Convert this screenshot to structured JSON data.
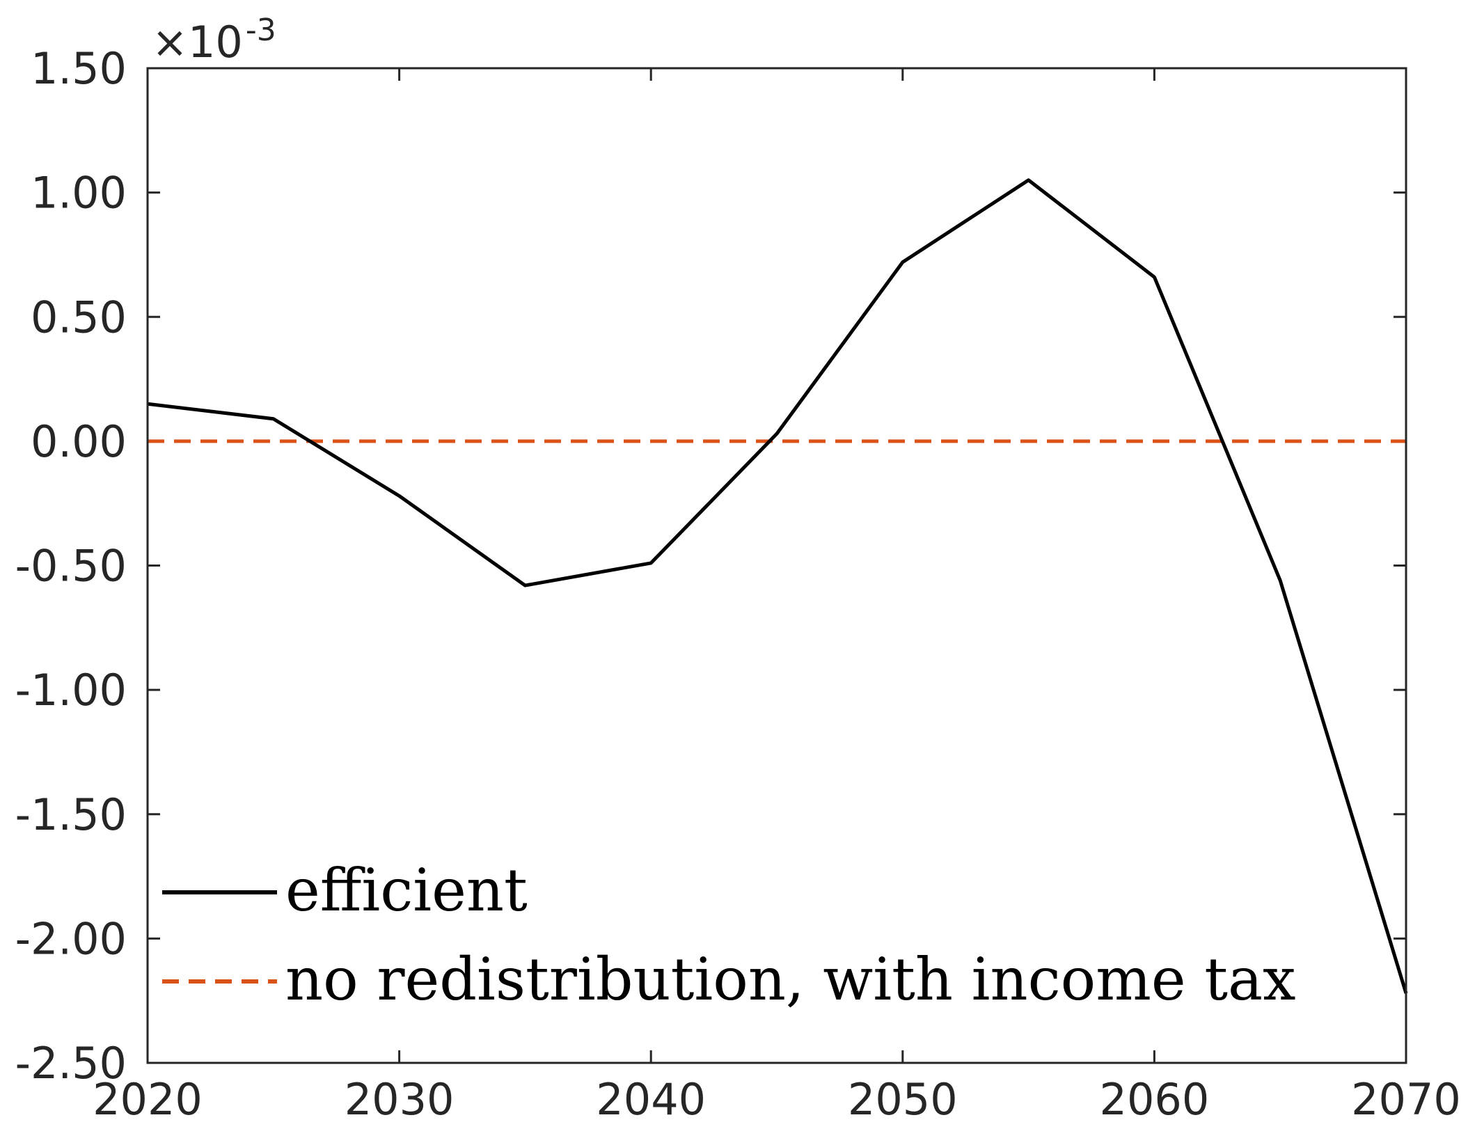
{
  "chart_data": {
    "type": "line",
    "title": "",
    "xlabel": "",
    "ylabel": "",
    "x": [
      2020,
      2025,
      2030,
      2035,
      2040,
      2045,
      2050,
      2055,
      2060,
      2065,
      2070
    ],
    "xlim": [
      2020,
      2070
    ],
    "ylim": [
      -2.5,
      1.5
    ],
    "y_exponent_label": {
      "base": "×10",
      "exponent": "-3"
    },
    "x_ticks": [
      2020,
      2030,
      2040,
      2050,
      2060,
      2070
    ],
    "x_tick_labels": [
      "2020",
      "2030",
      "2040",
      "2050",
      "2060",
      "2070"
    ],
    "y_ticks": [
      1.5,
      1.0,
      0.5,
      0.0,
      -0.5,
      -1.0,
      -1.5,
      -2.0,
      -2.5
    ],
    "y_tick_labels": [
      "1.50",
      "1.00",
      "0.50",
      "0.00",
      "-0.50",
      "-1.00",
      "-1.50",
      "-2.00",
      "-2.50"
    ],
    "grid": false,
    "legend_position": "bottom-left",
    "series": [
      {
        "name": "efficient",
        "color": "#000000",
        "style": "solid",
        "values": [
          0.15,
          0.09,
          -0.22,
          -0.58,
          -0.49,
          0.03,
          0.72,
          1.05,
          0.66,
          -0.56,
          -2.22
        ]
      },
      {
        "name": "no redistribution, with income tax",
        "color": "#D95319",
        "style": "dashed",
        "values": [
          0.0,
          0.0,
          0.0,
          0.0,
          0.0,
          0.0,
          0.0,
          0.0,
          0.0,
          0.0,
          0.0
        ]
      }
    ]
  }
}
